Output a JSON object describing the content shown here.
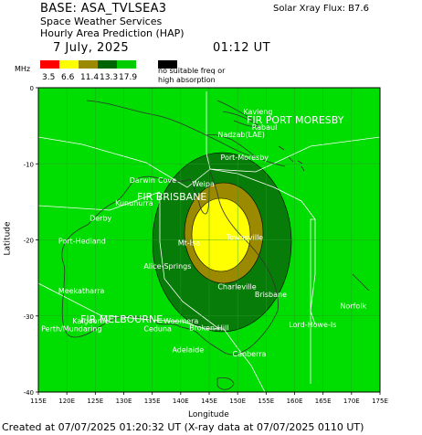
{
  "header": {
    "base": "BASE: ASA_TVLSEA3",
    "service": "Space Weather Services",
    "product": "Hourly Area Prediction (HAP)",
    "date": "7 July, 2025",
    "time": "01:12 UT",
    "xray_flux": "Solar Xray Flux: B7.6"
  },
  "legend": {
    "unit": "MHz",
    "levels": [
      {
        "label": "3.5",
        "color": "#ff0000"
      },
      {
        "label": "6.6",
        "color": "#ffff00"
      },
      {
        "label": "11.4",
        "color": "#9b8a00"
      },
      {
        "label": "13.3",
        "color": "#006400"
      },
      {
        "label": "17.9",
        "color": "#00cc00"
      }
    ],
    "no_suitable": [
      "no suitable freq or",
      "high absorption"
    ]
  },
  "axes": {
    "x_title": "Longitude",
    "y_title": "Latitude",
    "x_ticks": [
      "115E",
      "120E",
      "125E",
      "130E",
      "135E",
      "140E",
      "145E",
      "150E",
      "155E",
      "160E",
      "165E",
      "170E",
      "175E"
    ],
    "x_values": [
      115,
      120,
      125,
      130,
      135,
      140,
      145,
      150,
      155,
      160,
      165,
      170,
      175
    ],
    "y_ticks": [
      "0",
      "-10",
      "-20",
      "-30",
      "-40"
    ],
    "y_values": [
      0,
      -10,
      -20,
      -30,
      -40
    ]
  },
  "regions": {
    "fir_port_moresby": "FIR PORT MORESBY",
    "fir_brisbane": "FIR BRISBANE",
    "fir_melbourne": "FIR MELBOURNE"
  },
  "places": [
    {
      "name": "Kavieng",
      "lon": 151,
      "lat": -3.5
    },
    {
      "name": "Rabaul",
      "lon": 152.5,
      "lat": -5.5
    },
    {
      "name": "Nadzab(LAE)",
      "lon": 146.5,
      "lat": -6.5
    },
    {
      "name": "Port-Moresby",
      "lon": 147,
      "lat": -9.5
    },
    {
      "name": "Darwin",
      "lon": 131,
      "lat": -12.5
    },
    {
      "name": "Cove",
      "lon": 136,
      "lat": -12.5
    },
    {
      "name": "Weipa",
      "lon": 142,
      "lat": -13
    },
    {
      "name": "Kununurra",
      "lon": 128.5,
      "lat": -15.5
    },
    {
      "name": "Derby",
      "lon": 124,
      "lat": -17.5
    },
    {
      "name": "Port-Hedland",
      "lon": 118.5,
      "lat": -20.5
    },
    {
      "name": "Mt-Isa",
      "lon": 139.5,
      "lat": -20.7
    },
    {
      "name": "Townsville",
      "lon": 148,
      "lat": -20
    },
    {
      "name": "Alice-Springs",
      "lon": 133.5,
      "lat": -23.8
    },
    {
      "name": "Charleville",
      "lon": 146.5,
      "lat": -26.5
    },
    {
      "name": "Brisbane",
      "lon": 153,
      "lat": -27.5
    },
    {
      "name": "Meekatharra",
      "lon": 118.5,
      "lat": -27
    },
    {
      "name": "Kalgoorlie",
      "lon": 121,
      "lat": -31
    },
    {
      "name": "Perth/Mundaring",
      "lon": 115.5,
      "lat": -32
    },
    {
      "name": "Ceduna",
      "lon": 133.5,
      "lat": -32
    },
    {
      "name": "Woomera",
      "lon": 137,
      "lat": -31
    },
    {
      "name": "Broken-Hill",
      "lon": 141.5,
      "lat": -31.9
    },
    {
      "name": "Adelaide",
      "lon": 138.5,
      "lat": -34.8
    },
    {
      "name": "Canberra",
      "lon": 149.1,
      "lat": -35.3
    },
    {
      "name": "Norfolk",
      "lon": 168,
      "lat": -29
    },
    {
      "name": "Lord-Howe-Is",
      "lon": 159,
      "lat": -31.5
    }
  ]
}
